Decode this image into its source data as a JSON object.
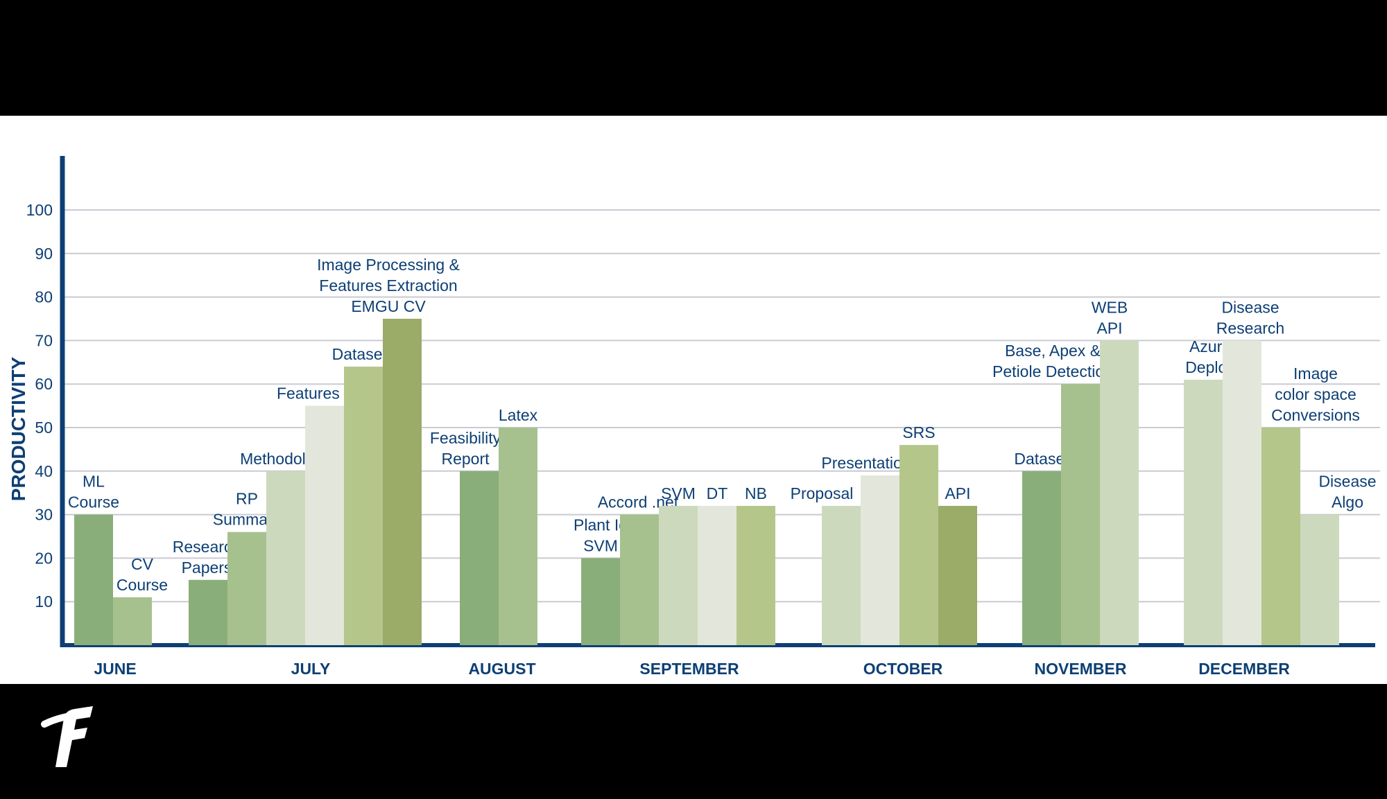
{
  "chart_data": {
    "type": "bar",
    "ylabel": "PRODUCTIVITY",
    "xlabel": "",
    "ylim": [
      0,
      100
    ],
    "yticks": [
      10,
      20,
      30,
      40,
      50,
      60,
      70,
      80,
      90,
      100
    ],
    "grid": true,
    "groups": [
      {
        "month": "JUNE",
        "bars": [
          {
            "label": "ML\nCourse",
            "value": 30,
            "color": "#8aae79"
          },
          {
            "label": "CV\nCourse",
            "value": 11,
            "color": "#a6c18e"
          }
        ]
      },
      {
        "month": "JULY",
        "bars": [
          {
            "label": "Research\nPapers",
            "value": 15,
            "color": "#8aae79"
          },
          {
            "label": "RP\nSummary",
            "value": 26,
            "color": "#a6c18e"
          },
          {
            "label": "Methodology",
            "value": 40,
            "color": "#cdd9bd"
          },
          {
            "label": "Features Doc",
            "value": 55,
            "color": "#e3e6da"
          },
          {
            "label": "Datasets",
            "value": 64,
            "color": "#b5c68b"
          },
          {
            "label": "Image Processing &\nFeatures Extraction\nEMGU CV",
            "value": 75,
            "color": "#9bab68"
          }
        ]
      },
      {
        "month": "AUGUST",
        "bars": [
          {
            "label": "Feasibility\nReport",
            "value": 40,
            "color": "#8aae79"
          },
          {
            "label": "Latex",
            "value": 50,
            "color": "#a6c18e"
          }
        ]
      },
      {
        "month": "SEPTEMBER",
        "bars": [
          {
            "label": "Plant Id\nSVM",
            "value": 20,
            "color": "#8aae79"
          },
          {
            "label": "Accord .net",
            "value": 30,
            "color": "#a6c18e"
          },
          {
            "label": "SVM",
            "value": 32,
            "color": "#cdd9bd"
          },
          {
            "label": "DT",
            "value": 32,
            "color": "#e3e6da"
          },
          {
            "label": "NB",
            "value": 32,
            "color": "#b5c68b"
          }
        ]
      },
      {
        "month": "OCTOBER",
        "bars": [
          {
            "label": "Proposal",
            "value": 32,
            "color": "#cdd9bd"
          },
          {
            "label": "Presentation",
            "value": 39,
            "color": "#e3e6da"
          },
          {
            "label": "SRS",
            "value": 46,
            "color": "#b5c68b"
          },
          {
            "label": "API",
            "value": 32,
            "color": "#9bab68"
          }
        ]
      },
      {
        "month": "NOVEMBER",
        "bars": [
          {
            "label": "Dataset",
            "value": 40,
            "color": "#8aae79"
          },
          {
            "label": "Base, Apex &\nPetiole Detection",
            "value": 60,
            "color": "#a6c18e"
          },
          {
            "label": "WEB\nAPI",
            "value": 70,
            "color": "#cdd9bd"
          }
        ]
      },
      {
        "month": "DECEMBER",
        "bars": [
          {
            "label": "Azure\nDeploy",
            "value": 61,
            "color": "#cdd9bd"
          },
          {
            "label": "Disease\nResearch",
            "value": 70,
            "color": "#e3e6da"
          },
          {
            "label": "Image\ncolor space\nConversions",
            "value": 50,
            "color": "#b5c68b"
          },
          {
            "label": "Disease\nAlgo",
            "value": 30,
            "color": "#cdd9bd"
          }
        ]
      }
    ]
  },
  "colors": {
    "axis": "#0d3f74",
    "grid": "#c9cbd2",
    "label": "#0d3f74",
    "frame": "#000000",
    "panel": "#ffffff"
  },
  "logo": {
    "icon": "brand-f-logo"
  }
}
